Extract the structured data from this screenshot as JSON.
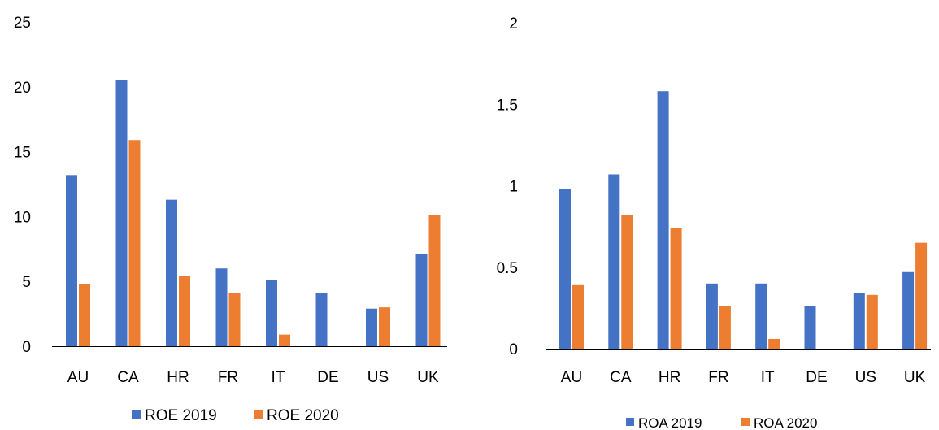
{
  "chart_data": [
    {
      "type": "bar",
      "categories": [
        "AU",
        "CA",
        "HR",
        "FR",
        "IT",
        "DE",
        "US",
        "UK"
      ],
      "series": [
        {
          "name": "ROE 2019",
          "color": "#4472C4",
          "values": [
            13.2,
            20.5,
            11.3,
            6.0,
            5.1,
            4.1,
            2.9,
            7.1
          ]
        },
        {
          "name": "ROE 2020",
          "color": "#ED7D31",
          "values": [
            4.8,
            15.9,
            5.4,
            4.1,
            0.9,
            null,
            3.0,
            10.1
          ]
        }
      ],
      "ylim": [
        0,
        25
      ],
      "yticks": [
        0,
        5,
        10,
        15,
        20,
        25
      ],
      "grid": false,
      "legend_position": "bottom"
    },
    {
      "type": "bar",
      "categories": [
        "AU",
        "CA",
        "HR",
        "FR",
        "IT",
        "DE",
        "US",
        "UK"
      ],
      "series": [
        {
          "name": "ROA 2019",
          "color": "#4472C4",
          "values": [
            0.98,
            1.07,
            1.58,
            0.4,
            0.4,
            0.26,
            0.34,
            0.47
          ]
        },
        {
          "name": "ROA 2020",
          "color": "#ED7D31",
          "values": [
            0.39,
            0.82,
            0.74,
            0.26,
            0.06,
            null,
            0.33,
            0.65
          ]
        }
      ],
      "ylim": [
        0,
        2
      ],
      "yticks": [
        "0",
        "0.5",
        "1",
        "1.5",
        "2"
      ],
      "grid": false,
      "legend_position": "bottom"
    }
  ]
}
